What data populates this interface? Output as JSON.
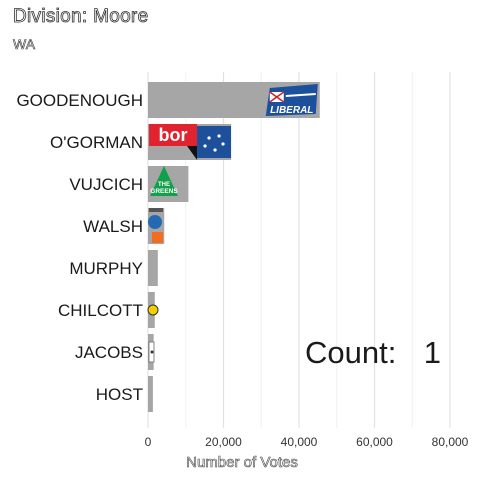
{
  "header": {
    "title": "Division: Moore",
    "subtitle": "WA"
  },
  "counter": {
    "label": "Count:",
    "value": "1"
  },
  "chart_data": {
    "type": "bar",
    "orientation": "horizontal",
    "categories": [
      "GOODENOUGH",
      "O'GORMAN",
      "VUJCICH",
      "WALSH",
      "MURPHY",
      "CHILCOTT",
      "JACOBS",
      "HOST"
    ],
    "values": [
      45500,
      22000,
      10700,
      4300,
      2600,
      1800,
      1500,
      1300
    ],
    "xlabel": "Number of Votes",
    "ylabel": "",
    "xlim": [
      0,
      85000
    ],
    "xticks": [
      0,
      20000,
      40000,
      60000,
      80000
    ],
    "xtick_labels": [
      "0",
      "20,000",
      "40,000",
      "60,000",
      "80,000"
    ],
    "bar_color": "#a6a6a6",
    "grid": "vertical-major",
    "party_logos": [
      {
        "category": "GOODENOUGH",
        "party": "Liberal",
        "icon": "liberal-logo-icon",
        "text": "LIBERAL",
        "color": "#1c4f9c"
      },
      {
        "category": "O'GORMAN",
        "party": "Labor",
        "icon": "labor-logo-icon",
        "text": "bor",
        "color": "#e0232f"
      },
      {
        "category": "VUJCICH",
        "party": "Greens",
        "icon": "greens-logo-icon",
        "text": "THE GREENS",
        "color": "#10a14a"
      },
      {
        "category": "WALSH",
        "party": "One Nation",
        "icon": "one-nation-logo-icon",
        "color": "#f36c21"
      },
      {
        "category": "CHILCOTT",
        "party": "Independent",
        "icon": "yellow-circle-logo-icon",
        "color": "#f5d000"
      },
      {
        "category": "JACOBS",
        "party": "Independent",
        "icon": "small-logo-icon",
        "color": "#333333"
      }
    ]
  }
}
